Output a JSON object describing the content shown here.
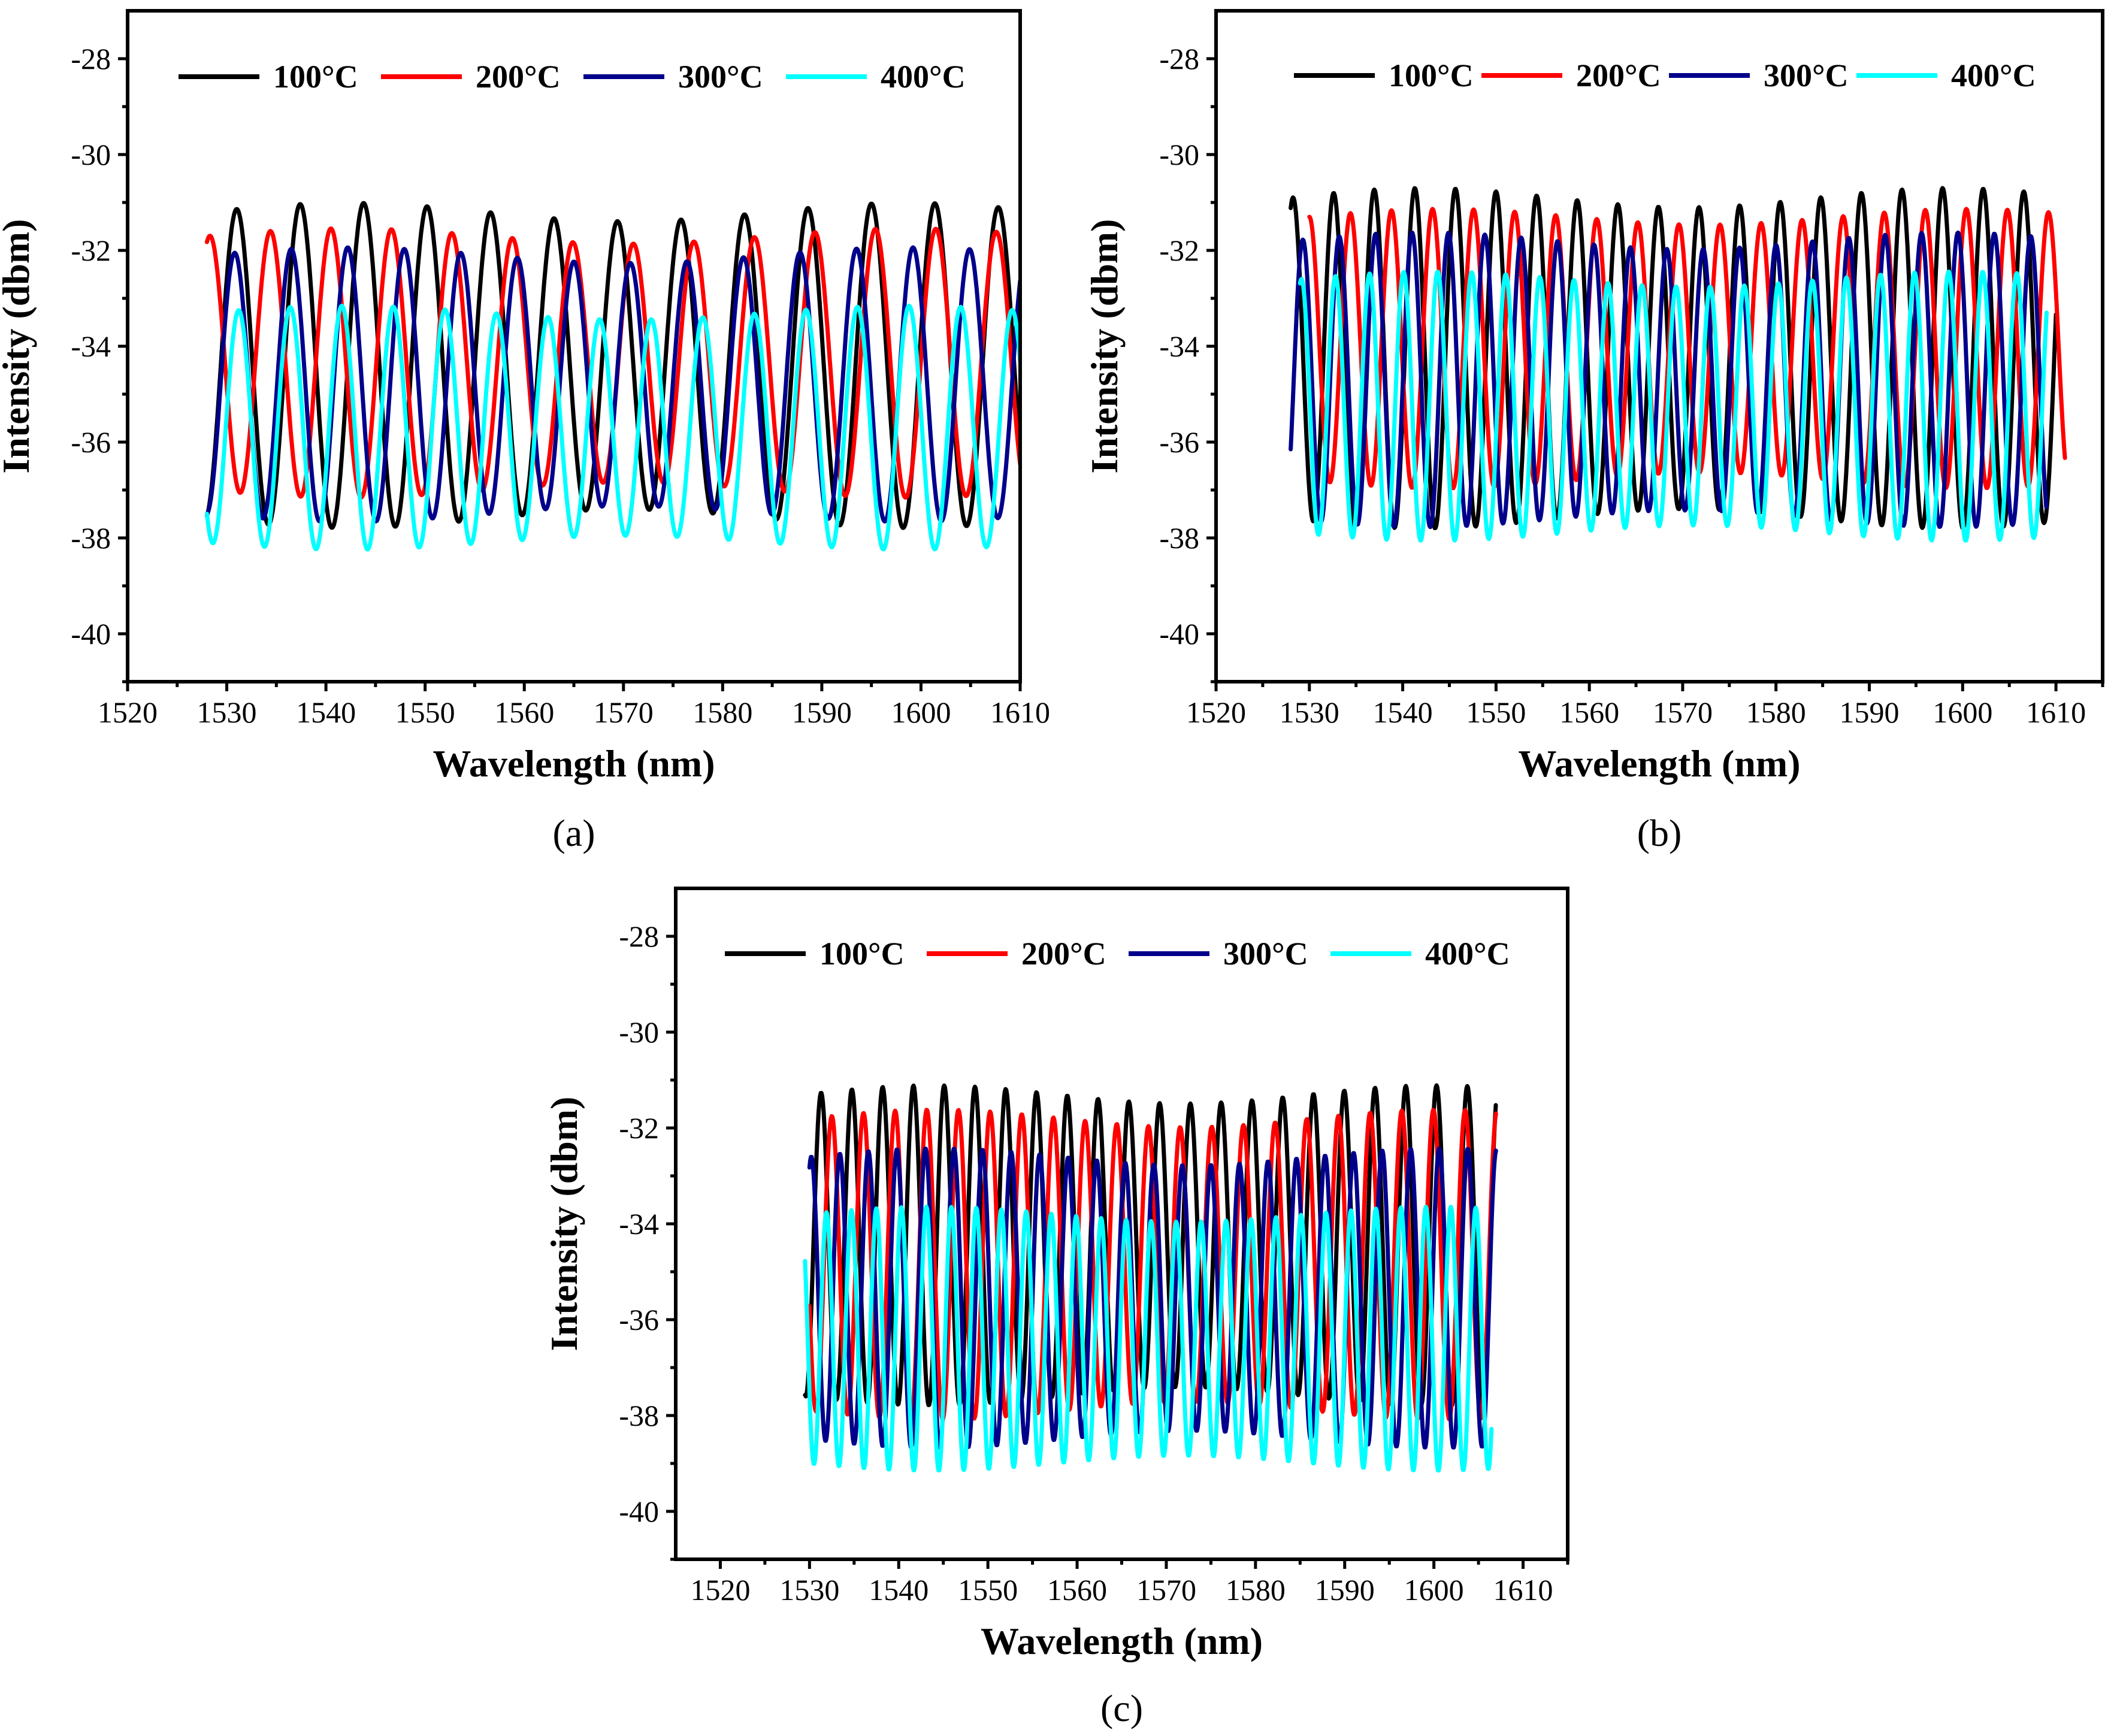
{
  "chart_data": [
    {
      "type": "line",
      "panel_label": "(a)",
      "xlabel": "Wavelength (nm)",
      "ylabel": "Intensity (dbm)",
      "xlim": [
        1520,
        1610
      ],
      "ylim": [
        -41,
        -27
      ],
      "x_ticks": [
        1520,
        1530,
        1540,
        1550,
        1560,
        1570,
        1580,
        1590,
        1600,
        1610
      ],
      "y_ticks": [
        -28,
        -30,
        -32,
        -34,
        -36,
        -38,
        -40
      ],
      "x_tick_labels": [
        "1520",
        "1530",
        "1540",
        "1550",
        "1560",
        "1570",
        "1580",
        "1590",
        "1600",
        "1610"
      ],
      "y_tick_labels": [
        "-28",
        "-30",
        "-32",
        "-34",
        "-36",
        "-38",
        "-40"
      ],
      "legend_position": "top",
      "series": [
        {
          "name": "100°C",
          "color": "#000000",
          "x_range": [
            1528,
            1610
          ],
          "period": 6.4,
          "phase": 1531.0,
          "top": -31.2,
          "bottom": -37.6
        },
        {
          "name": "200°C",
          "color": "#ff0000",
          "x_range": [
            1528,
            1610
          ],
          "period": 6.1,
          "phase": 1528.3,
          "top": -31.7,
          "bottom": -37.0
        },
        {
          "name": "300°C",
          "color": "#00008b",
          "x_range": [
            1528,
            1610
          ],
          "period": 5.7,
          "phase": 1530.8,
          "top": -32.1,
          "bottom": -37.5
        },
        {
          "name": "400°C",
          "color": "#00ffff",
          "x_range": [
            1528,
            1610
          ],
          "period": 5.2,
          "phase": 1531.2,
          "top": -33.3,
          "bottom": -38.1
        }
      ]
    },
    {
      "type": "line",
      "panel_label": "(b)",
      "xlabel": "Wavelength (nm)",
      "ylabel": "Intensity (dbm)",
      "xlim": [
        1520,
        1615
      ],
      "ylim": [
        -41,
        -27
      ],
      "x_ticks": [
        1520,
        1530,
        1540,
        1550,
        1560,
        1570,
        1580,
        1590,
        1600,
        1610
      ],
      "y_ticks": [
        -28,
        -30,
        -32,
        -34,
        -36,
        -38,
        -40
      ],
      "x_tick_labels": [
        "1520",
        "1530",
        "1540",
        "1550",
        "1560",
        "1570",
        "1580",
        "1590",
        "1600",
        "1610"
      ],
      "y_tick_labels": [
        "-28",
        "-30",
        "-32",
        "-34",
        "-36",
        "-38",
        "-40"
      ],
      "legend_position": "top",
      "series": [
        {
          "name": "100°C",
          "color": "#000000",
          "x_range": [
            1528,
            1610
          ],
          "period": 4.35,
          "phase": 1532.6,
          "top": -30.9,
          "bottom": -37.6
        },
        {
          "name": "200°C",
          "color": "#ff0000",
          "x_range": [
            1530,
            1611
          ],
          "period": 4.4,
          "phase": 1534.4,
          "top": -31.3,
          "bottom": -36.8
        },
        {
          "name": "300°C",
          "color": "#00008b",
          "x_range": [
            1528,
            1609
          ],
          "period": 3.9,
          "phase": 1533.2,
          "top": -31.8,
          "bottom": -37.6
        },
        {
          "name": "400°C",
          "color": "#00ffff",
          "x_range": [
            1529,
            1609
          ],
          "period": 3.65,
          "phase": 1532.8,
          "top": -32.6,
          "bottom": -37.9
        }
      ]
    },
    {
      "type": "line",
      "panel_label": "(c)",
      "xlabel": "Wavelength (nm)",
      "ylabel": "Intensity (dbm)",
      "xlim": [
        1515,
        1615
      ],
      "ylim": [
        -41,
        -27
      ],
      "x_ticks": [
        1520,
        1530,
        1540,
        1550,
        1560,
        1570,
        1580,
        1590,
        1600,
        1610
      ],
      "y_ticks": [
        -28,
        -30,
        -32,
        -34,
        -36,
        -38,
        -40
      ],
      "x_tick_labels": [
        "1520",
        "1530",
        "1540",
        "1550",
        "1560",
        "1570",
        "1580",
        "1590",
        "1600",
        "1610"
      ],
      "y_tick_labels": [
        "-28",
        "-30",
        "-32",
        "-34",
        "-36",
        "-38",
        "-40"
      ],
      "legend_position": "top",
      "series": [
        {
          "name": "100°C",
          "color": "#000000",
          "x_range": [
            1529.5,
            1607
          ],
          "period": 3.45,
          "phase": 1531.3,
          "top": -31.3,
          "bottom": -37.6
        },
        {
          "name": "200°C",
          "color": "#ff0000",
          "x_range": [
            1530,
            1607
          ],
          "period": 3.55,
          "phase": 1532.5,
          "top": -31.8,
          "bottom": -37.9
        },
        {
          "name": "300°C",
          "color": "#00008b",
          "x_range": [
            1530,
            1607
          ],
          "period": 3.2,
          "phase": 1533.4,
          "top": -32.6,
          "bottom": -38.5
        },
        {
          "name": "400°C",
          "color": "#00ffff",
          "x_range": [
            1529.5,
            1606.5
          ],
          "period": 2.8,
          "phase": 1531.9,
          "top": -33.8,
          "bottom": -39.0
        }
      ]
    }
  ]
}
